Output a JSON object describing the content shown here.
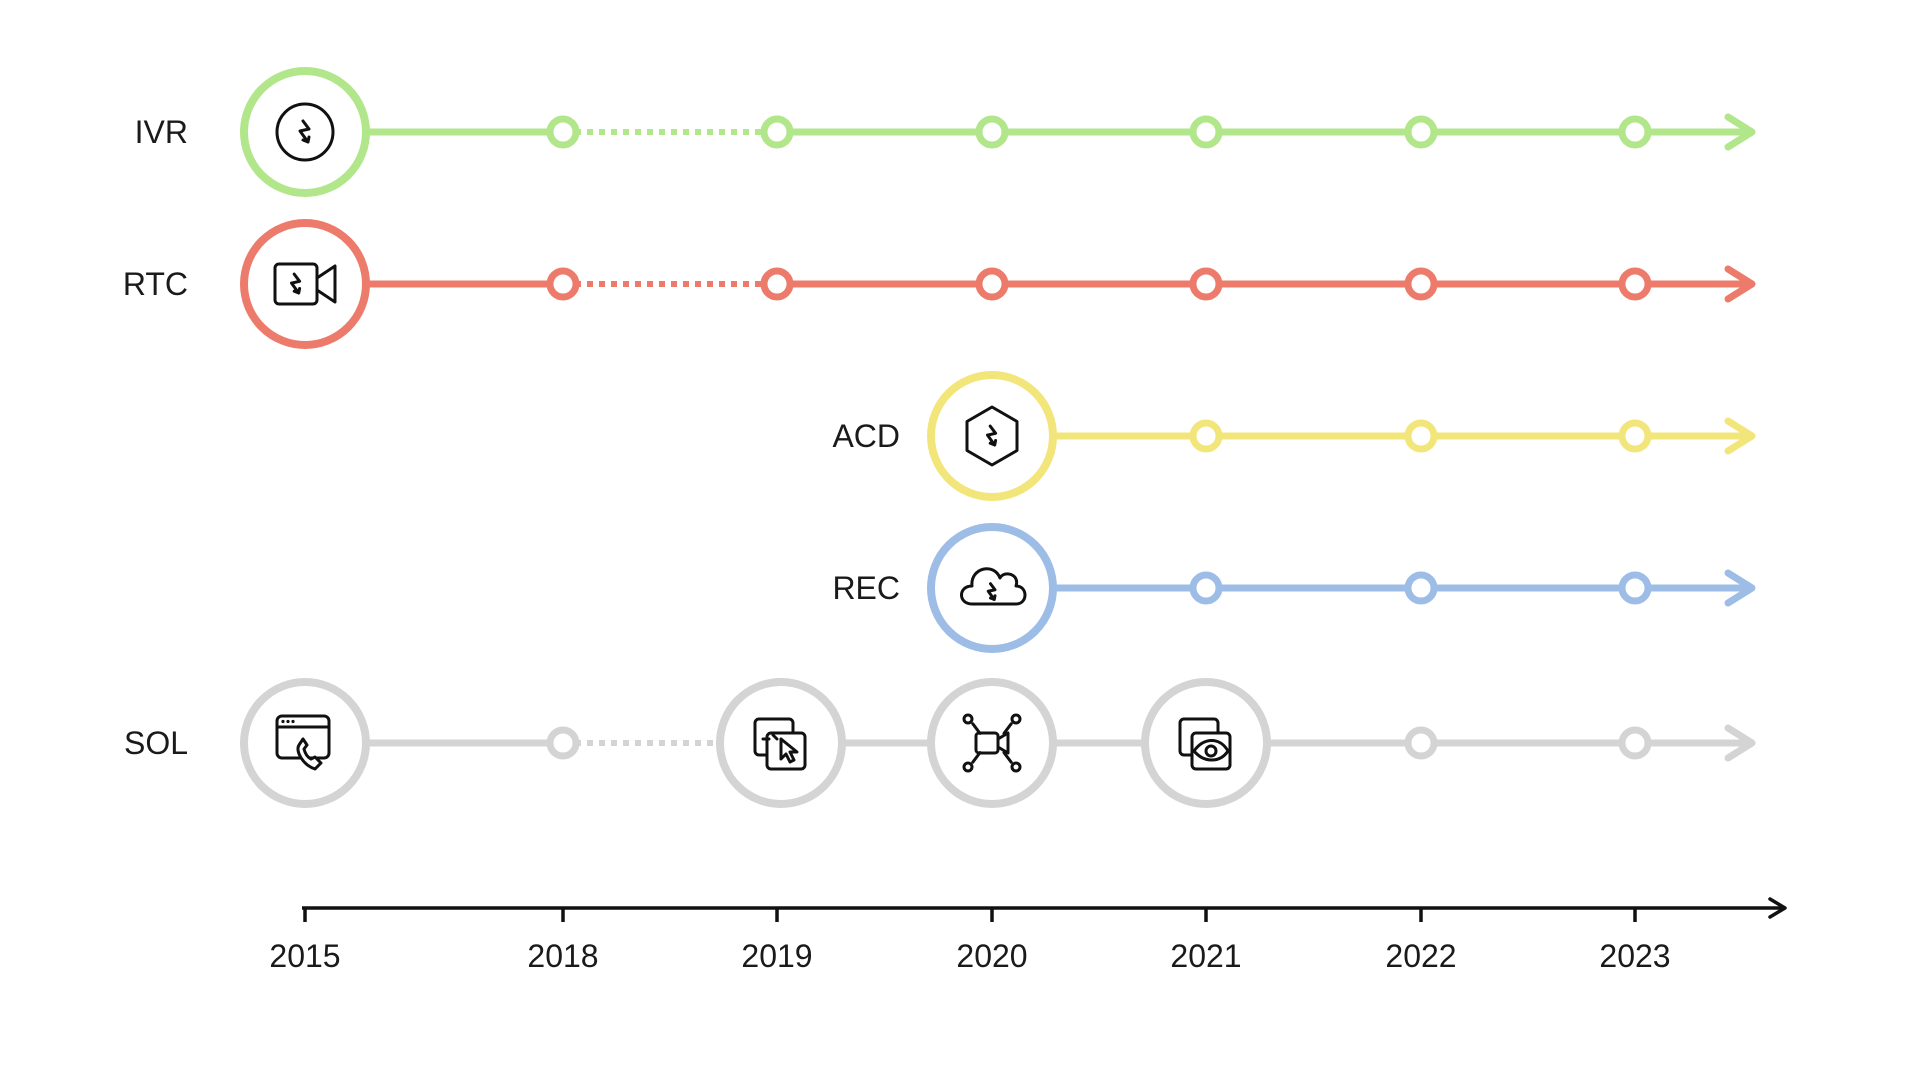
{
  "timeline": {
    "years": [
      "2015",
      "2018",
      "2019",
      "2020",
      "2021",
      "2022",
      "2023"
    ],
    "rows": [
      {
        "label": "IVR",
        "color": "#b2e68a",
        "start_year": "2015",
        "icon": "bolt-circle-icon",
        "dotted_segment": [
          "2018",
          "2019"
        ],
        "milestones": [
          "2018",
          "2019",
          "2020",
          "2021",
          "2022",
          "2023"
        ]
      },
      {
        "label": "RTC",
        "color": "#ed7b6b",
        "start_year": "2015",
        "icon": "video-camera-icon",
        "dotted_segment": [
          "2018",
          "2019"
        ],
        "milestones": [
          "2018",
          "2019",
          "2020",
          "2021",
          "2022",
          "2023"
        ]
      },
      {
        "label": "ACD",
        "color": "#f2e67a",
        "start_year": "2020",
        "icon": "bolt-hexagon-icon",
        "dotted_segment": null,
        "milestones": [
          "2021",
          "2022",
          "2023"
        ]
      },
      {
        "label": "REC",
        "color": "#9dbde6",
        "start_year": "2020",
        "icon": "bolt-cloud-icon",
        "dotted_segment": null,
        "milestones": [
          "2021",
          "2022",
          "2023"
        ]
      },
      {
        "label": "SOL",
        "color": "#d4d4d4",
        "start_year": "2015",
        "icon": "browser-phone-icon",
        "dotted_segment": [
          "2018",
          "2019"
        ],
        "milestones": [
          "2018",
          "2022",
          "2023"
        ],
        "extra_icons": [
          {
            "year": "2019",
            "icon": "screen-cursor-icon"
          },
          {
            "year": "2020",
            "icon": "camera-network-icon"
          },
          {
            "year": "2021",
            "icon": "screen-eye-icon"
          }
        ]
      }
    ]
  }
}
